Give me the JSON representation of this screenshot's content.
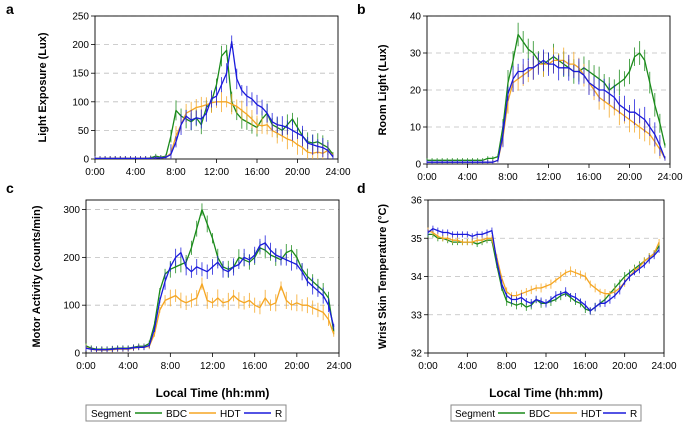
{
  "colors": {
    "BDC": "#1a8a1a",
    "HDT": "#f5a623",
    "R": "#1a1adb"
  },
  "legend": {
    "title": "Segment",
    "entries": [
      "BDC",
      "HDT",
      "R"
    ]
  },
  "chart_data": [
    {
      "letter": "a",
      "type": "line",
      "ylabel": "Light Exposure (Lux)",
      "xlabel": "",
      "xticks": [
        "0:00",
        "4:00",
        "8:00",
        "12:00",
        "16:00",
        "20:00",
        "24:00"
      ],
      "xlim": [
        0,
        24
      ],
      "ylim": [
        0,
        250
      ],
      "yticks": [
        0,
        50,
        100,
        150,
        200,
        250
      ],
      "x": [
        0,
        0.5,
        1,
        1.5,
        2,
        2.5,
        3,
        3.5,
        4,
        4.5,
        5,
        5.5,
        6,
        6.5,
        7,
        7.5,
        8,
        8.5,
        9,
        9.5,
        10,
        10.5,
        11,
        11.5,
        12,
        12.5,
        13,
        13.5,
        14,
        14.5,
        15,
        15.5,
        16,
        16.5,
        17,
        17.5,
        18,
        18.5,
        19,
        19.5,
        20,
        20.5,
        21,
        21.5,
        22,
        22.5,
        23,
        23.5
      ],
      "series": [
        {
          "name": "BDC",
          "values": [
            1,
            1,
            1,
            1,
            1,
            1,
            1,
            1,
            1,
            1,
            1,
            2,
            5,
            3,
            5,
            40,
            85,
            75,
            70,
            65,
            72,
            60,
            90,
            100,
            130,
            180,
            190,
            100,
            80,
            70,
            65,
            60,
            55,
            70,
            80,
            60,
            55,
            50,
            60,
            70,
            55,
            40,
            30,
            28,
            30,
            25,
            20,
            8
          ]
        },
        {
          "name": "HDT",
          "values": [
            1,
            1,
            1,
            1,
            1,
            1,
            1,
            1,
            1,
            1,
            1,
            1,
            2,
            2,
            3,
            10,
            40,
            60,
            80,
            85,
            90,
            92,
            95,
            98,
            100,
            100,
            100,
            96,
            92,
            85,
            78,
            70,
            60,
            58,
            60,
            50,
            45,
            40,
            35,
            32,
            25,
            20,
            12,
            10,
            12,
            10,
            15,
            6
          ]
        },
        {
          "name": "R",
          "values": [
            1,
            1,
            1,
            1,
            1,
            1,
            1,
            1,
            1,
            1,
            1,
            1,
            2,
            2,
            3,
            8,
            30,
            60,
            75,
            68,
            72,
            70,
            80,
            105,
            110,
            130,
            150,
            205,
            140,
            120,
            110,
            105,
            95,
            90,
            80,
            65,
            60,
            58,
            55,
            50,
            45,
            40,
            28,
            25,
            22,
            20,
            15,
            4
          ]
        }
      ]
    },
    {
      "letter": "b",
      "type": "line",
      "ylabel": "Room Light (Lux)",
      "xlabel": "",
      "xticks": [
        "0:00",
        "4:00",
        "8:00",
        "12:00",
        "16:00",
        "20:00",
        "24:00"
      ],
      "xlim": [
        0,
        24
      ],
      "ylim": [
        0,
        40
      ],
      "yticks": [
        0,
        10,
        20,
        30,
        40
      ],
      "x": [
        0,
        0.5,
        1,
        1.5,
        2,
        2.5,
        3,
        3.5,
        4,
        4.5,
        5,
        5.5,
        6,
        6.5,
        7,
        7.5,
        8,
        8.5,
        9,
        9.5,
        10,
        10.5,
        11,
        11.5,
        12,
        12.5,
        13,
        13.5,
        14,
        14.5,
        15,
        15.5,
        16,
        16.5,
        17,
        17.5,
        18,
        18.5,
        19,
        19.5,
        20,
        20.5,
        21,
        21.5,
        22,
        22.5,
        23,
        23.5
      ],
      "series": [
        {
          "name": "BDC",
          "values": [
            1,
            1,
            1,
            1,
            1,
            1,
            1,
            1,
            1,
            1,
            1,
            1,
            1.5,
            1.5,
            2,
            10,
            22,
            28,
            35,
            33,
            31,
            30,
            28,
            27,
            28,
            29,
            28,
            27,
            26,
            25,
            25,
            26,
            25,
            24,
            23,
            22,
            20,
            21,
            22,
            23,
            25,
            29,
            30,
            28,
            22,
            16,
            11,
            5
          ]
        },
        {
          "name": "HDT",
          "values": [
            0.5,
            0.5,
            0.5,
            0.5,
            0.5,
            0.5,
            0.5,
            0.5,
            0.5,
            0.5,
            0.5,
            0.5,
            0.5,
            0.5,
            1,
            7,
            17,
            22,
            23,
            24,
            25,
            26,
            27,
            27,
            27,
            28,
            28,
            28,
            27,
            27,
            26,
            24,
            22,
            20,
            18,
            17,
            16,
            15,
            14,
            13,
            12,
            11,
            10,
            9,
            8,
            6,
            4,
            1.5
          ]
        },
        {
          "name": "R",
          "values": [
            0.5,
            0.5,
            0.5,
            0.5,
            0.5,
            0.5,
            0.5,
            0.5,
            0.5,
            0.5,
            0.5,
            0.5,
            0.5,
            0.5,
            1,
            8,
            19,
            23,
            25,
            25,
            26,
            26,
            27,
            28,
            27,
            27,
            26,
            26,
            26,
            25,
            25,
            24,
            22,
            21,
            20,
            20,
            19,
            18,
            16,
            15,
            14,
            14,
            13,
            12,
            10,
            8,
            5,
            1.5
          ]
        }
      ]
    },
    {
      "letter": "c",
      "type": "line",
      "ylabel": "Motor Activity (counts/min)",
      "xlabel": "Local Time (hh:mm)",
      "xticks": [
        "0:00",
        "4:00",
        "8:00",
        "12:00",
        "16:00",
        "20:00",
        "24:00"
      ],
      "xlim": [
        0,
        24
      ],
      "ylim": [
        0,
        320
      ],
      "yticks": [
        0,
        100,
        200,
        300
      ],
      "x": [
        0,
        0.5,
        1,
        1.5,
        2,
        2.5,
        3,
        3.5,
        4,
        4.5,
        5,
        5.5,
        6,
        6.5,
        7,
        7.5,
        8,
        8.5,
        9,
        9.5,
        10,
        10.5,
        11,
        11.5,
        12,
        12.5,
        13,
        13.5,
        14,
        14.5,
        15,
        15.5,
        16,
        16.5,
        17,
        17.5,
        18,
        18.5,
        19,
        19.5,
        20,
        20.5,
        21,
        21.5,
        22,
        22.5,
        23,
        23.5
      ],
      "series": [
        {
          "name": "BDC",
          "values": [
            15,
            10,
            8,
            8,
            8,
            9,
            10,
            10,
            10,
            12,
            14,
            14,
            20,
            60,
            130,
            165,
            175,
            180,
            185,
            190,
            220,
            260,
            300,
            270,
            240,
            200,
            180,
            175,
            180,
            200,
            195,
            190,
            200,
            220,
            215,
            205,
            200,
            195,
            210,
            215,
            200,
            175,
            160,
            150,
            140,
            130,
            115,
            45
          ]
        },
        {
          "name": "HDT",
          "values": [
            12,
            8,
            6,
            6,
            6,
            7,
            8,
            8,
            8,
            10,
            12,
            12,
            14,
            40,
            90,
            110,
            115,
            120,
            110,
            105,
            110,
            115,
            145,
            110,
            105,
            115,
            105,
            108,
            120,
            110,
            105,
            110,
            100,
            95,
            115,
            100,
            105,
            140,
            110,
            100,
            105,
            100,
            100,
            95,
            90,
            85,
            70,
            40
          ]
        },
        {
          "name": "R",
          "values": [
            10,
            8,
            7,
            7,
            7,
            8,
            9,
            9,
            9,
            11,
            12,
            12,
            16,
            50,
            110,
            150,
            180,
            200,
            210,
            180,
            170,
            180,
            175,
            170,
            180,
            190,
            175,
            170,
            180,
            185,
            200,
            195,
            205,
            225,
            230,
            215,
            205,
            200,
            195,
            190,
            185,
            170,
            150,
            140,
            130,
            120,
            100,
            55
          ]
        }
      ]
    },
    {
      "letter": "d",
      "type": "line",
      "ylabel": "Wrist Skin Temperature (°C)",
      "xlabel": "Local Time (hh:mm)",
      "xticks": [
        "0:00",
        "4:00",
        "8:00",
        "12:00",
        "16:00",
        "20:00",
        "24:00"
      ],
      "xlim": [
        0,
        24
      ],
      "ylim": [
        32,
        36
      ],
      "yticks": [
        32,
        33,
        34,
        35,
        36
      ],
      "x": [
        0,
        0.5,
        1,
        1.5,
        2,
        2.5,
        3,
        3.5,
        4,
        4.5,
        5,
        5.5,
        6,
        6.5,
        7,
        7.5,
        8,
        8.5,
        9,
        9.5,
        10,
        10.5,
        11,
        11.5,
        12,
        12.5,
        13,
        13.5,
        14,
        14.5,
        15,
        15.5,
        16,
        16.5,
        17,
        17.5,
        18,
        18.5,
        19,
        19.5,
        20,
        20.5,
        21,
        21.5,
        22,
        22.5,
        23,
        23.5
      ],
      "series": [
        {
          "name": "BDC",
          "values": [
            35.1,
            35.1,
            35.0,
            35.0,
            34.95,
            34.9,
            34.9,
            34.9,
            34.9,
            34.9,
            34.85,
            34.9,
            34.95,
            34.95,
            34.3,
            33.7,
            33.35,
            33.3,
            33.25,
            33.3,
            33.2,
            33.25,
            33.4,
            33.3,
            33.3,
            33.35,
            33.4,
            33.5,
            33.55,
            33.45,
            33.35,
            33.3,
            33.15,
            33.1,
            33.2,
            33.3,
            33.4,
            33.55,
            33.7,
            33.85,
            34.0,
            34.1,
            34.2,
            34.3,
            34.4,
            34.5,
            34.6,
            34.8
          ]
        },
        {
          "name": "HDT",
          "values": [
            35.2,
            35.15,
            35.05,
            35.0,
            35.0,
            34.95,
            34.95,
            34.9,
            34.9,
            34.9,
            34.95,
            34.95,
            35.0,
            35.0,
            34.5,
            33.95,
            33.6,
            33.5,
            33.5,
            33.55,
            33.6,
            33.65,
            33.7,
            33.7,
            33.75,
            33.8,
            33.9,
            34.0,
            34.1,
            34.15,
            34.1,
            34.05,
            34.0,
            33.8,
            33.7,
            33.6,
            33.55,
            33.55,
            33.6,
            33.7,
            33.85,
            34.0,
            34.15,
            34.25,
            34.4,
            34.5,
            34.6,
            34.9
          ]
        },
        {
          "name": "R",
          "values": [
            35.15,
            35.25,
            35.2,
            35.15,
            35.15,
            35.1,
            35.1,
            35.1,
            35.1,
            35.05,
            35.1,
            35.1,
            35.15,
            35.2,
            34.4,
            33.8,
            33.5,
            33.4,
            33.4,
            33.45,
            33.35,
            33.3,
            33.4,
            33.35,
            33.3,
            33.4,
            33.5,
            33.55,
            33.6,
            33.5,
            33.45,
            33.35,
            33.25,
            33.1,
            33.2,
            33.3,
            33.3,
            33.4,
            33.5,
            33.65,
            33.85,
            34.0,
            34.1,
            34.2,
            34.3,
            34.45,
            34.55,
            34.7
          ]
        }
      ]
    }
  ]
}
